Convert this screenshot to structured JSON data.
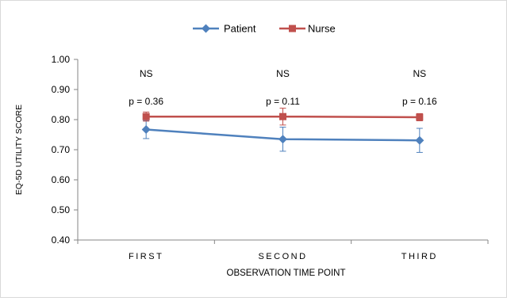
{
  "chart_data": {
    "type": "line",
    "categories": [
      "FIRST",
      "SECOND",
      "THIRD"
    ],
    "series": [
      {
        "name": "Patient",
        "values": [
          0.767,
          0.735,
          0.731
        ],
        "error": [
          0.03,
          0.04,
          0.04
        ],
        "color": "#4f81bd",
        "marker": "diamond"
      },
      {
        "name": "Nurse",
        "values": [
          0.81,
          0.81,
          0.808
        ],
        "error": [
          0.015,
          0.028,
          0.012
        ],
        "color": "#c0504d",
        "marker": "square"
      }
    ],
    "xlabel": "OBSERVATION TIME POINT",
    "ylabel": "EQ-5D UTILITY SCORE",
    "ylim": [
      0.4,
      1.0
    ],
    "yticks": [
      "0.40",
      "0.50",
      "0.60",
      "0.70",
      "0.80",
      "0.90",
      "1.00"
    ],
    "grid": false,
    "legend_position": "top",
    "annotations": [
      {
        "category": "FIRST",
        "significance": "NS",
        "p_value": "p = 0.36"
      },
      {
        "category": "SECOND",
        "significance": "NS",
        "p_value": "p = 0.11"
      },
      {
        "category": "THIRD",
        "significance": "NS",
        "p_value": "p = 0.16"
      }
    ]
  }
}
